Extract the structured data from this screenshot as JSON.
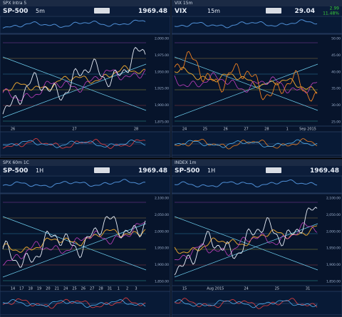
{
  "panels": [
    {
      "title": "SPX Intra 5",
      "symbol": "SP-500",
      "interval": "5m",
      "price": "1969.48",
      "x_labels": [
        "26",
        "27",
        "28"
      ],
      "y_labels": [
        "2,000.00",
        "1,975.00",
        "1,950.00",
        "1,925.00",
        "1,900.00",
        "1,875.00"
      ]
    },
    {
      "title": "VIX 15m",
      "symbol": "VIX",
      "interval": "15m",
      "price": "29.04",
      "change": "2.99",
      "change_pct": "11.48%",
      "x_labels": [
        "24",
        "25",
        "26",
        "27",
        "28",
        "1",
        "Sep 2015"
      ],
      "y_labels": [
        "50.00",
        "45.00",
        "40.00",
        "35.00",
        "30.00",
        "25.00"
      ]
    },
    {
      "title": "SPX 60m 1C",
      "symbol": "SP-500",
      "interval": "1H",
      "price": "1969.48",
      "x_labels": [
        "14",
        "17",
        "18",
        "19",
        "20",
        "21",
        "24",
        "25",
        "26",
        "27",
        "28",
        "31",
        "1",
        "2",
        "3"
      ],
      "y_labels": [
        "2,100.00",
        "2,050.00",
        "2,000.00",
        "1,950.00",
        "1,900.00",
        "1,850.00"
      ]
    },
    {
      "title": "INDEX 1m",
      "symbol": "SP-500",
      "interval": "1H",
      "price": "1969.48",
      "x_labels": [
        "15",
        "Aug 2015",
        "24",
        "25",
        "31"
      ],
      "y_labels": [
        "2,100.00",
        "2,050.00",
        "2,000.00",
        "1,950.00",
        "1,900.00",
        "1,850.00"
      ]
    }
  ]
}
